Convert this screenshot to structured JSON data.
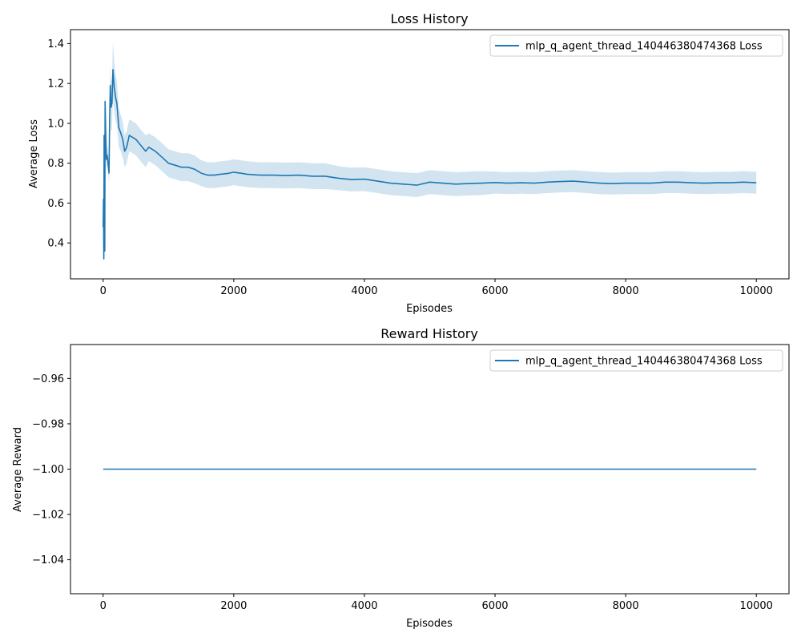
{
  "chart_data": [
    {
      "type": "line",
      "title": "Loss History",
      "xlabel": "Episodes",
      "ylabel": "Average Loss",
      "xlim": [
        -500,
        10500
      ],
      "ylim": [
        0.22,
        1.47
      ],
      "xticks": [
        0,
        2000,
        4000,
        6000,
        8000,
        10000
      ],
      "xtick_labels": [
        "0",
        "2000",
        "4000",
        "6000",
        "8000",
        "10000"
      ],
      "yticks": [
        0.4,
        0.6,
        0.8,
        1.0,
        1.2,
        1.4
      ],
      "ytick_labels": [
        "0.4",
        "0.6",
        "0.8",
        "1.0",
        "1.2",
        "1.4"
      ],
      "legend": {
        "position": "top-right",
        "entries": [
          "mlp_q_agent_thread_140446380474368 Loss"
        ]
      },
      "series": [
        {
          "name": "mlp_q_agent_thread_140446380474368 Loss",
          "color": "#1f77b4",
          "band_color": "#1f77b4",
          "x": [
            0,
            5,
            10,
            15,
            20,
            25,
            30,
            40,
            50,
            60,
            75,
            90,
            100,
            110,
            120,
            135,
            150,
            170,
            190,
            210,
            240,
            270,
            300,
            330,
            360,
            400,
            450,
            500,
            550,
            600,
            650,
            700,
            750,
            800,
            900,
            1000,
            1100,
            1200,
            1300,
            1400,
            1500,
            1600,
            1700,
            1800,
            1900,
            2000,
            2100,
            2200,
            2400,
            2600,
            2800,
            3000,
            3200,
            3400,
            3600,
            3800,
            4000,
            4200,
            4400,
            4600,
            4800,
            5000,
            5200,
            5400,
            5600,
            5800,
            6000,
            6200,
            6400,
            6600,
            6800,
            7000,
            7200,
            7400,
            7600,
            7800,
            8000,
            8200,
            8400,
            8600,
            8800,
            9000,
            9200,
            9400,
            9600,
            9800,
            10000
          ],
          "y": [
            0.48,
            0.62,
            0.32,
            0.94,
            0.88,
            0.36,
            1.11,
            0.95,
            0.82,
            0.84,
            0.8,
            0.75,
            1.02,
            1.19,
            1.08,
            1.1,
            1.27,
            1.18,
            1.13,
            1.1,
            0.98,
            0.95,
            0.92,
            0.86,
            0.88,
            0.94,
            0.93,
            0.92,
            0.9,
            0.88,
            0.86,
            0.88,
            0.87,
            0.86,
            0.83,
            0.8,
            0.79,
            0.78,
            0.78,
            0.77,
            0.75,
            0.74,
            0.74,
            0.745,
            0.748,
            0.755,
            0.75,
            0.745,
            0.74,
            0.74,
            0.738,
            0.74,
            0.735,
            0.735,
            0.725,
            0.718,
            0.72,
            0.71,
            0.7,
            0.695,
            0.69,
            0.705,
            0.7,
            0.695,
            0.698,
            0.7,
            0.703,
            0.7,
            0.702,
            0.7,
            0.705,
            0.708,
            0.71,
            0.705,
            0.7,
            0.698,
            0.7,
            0.7,
            0.7,
            0.705,
            0.705,
            0.702,
            0.7,
            0.702,
            0.702,
            0.705,
            0.702
          ],
          "spread": [
            0.0,
            0.0,
            0.0,
            0.02,
            0.02,
            0.02,
            0.05,
            0.05,
            0.05,
            0.05,
            0.05,
            0.05,
            0.09,
            0.11,
            0.12,
            0.13,
            0.14,
            0.13,
            0.12,
            0.11,
            0.1,
            0.09,
            0.09,
            0.08,
            0.08,
            0.08,
            0.08,
            0.08,
            0.08,
            0.08,
            0.08,
            0.07,
            0.07,
            0.07,
            0.07,
            0.07,
            0.07,
            0.07,
            0.07,
            0.07,
            0.065,
            0.065,
            0.065,
            0.065,
            0.065,
            0.065,
            0.065,
            0.065,
            0.065,
            0.065,
            0.065,
            0.065,
            0.065,
            0.065,
            0.06,
            0.06,
            0.06,
            0.06,
            0.06,
            0.06,
            0.06,
            0.06,
            0.06,
            0.06,
            0.06,
            0.06,
            0.055,
            0.055,
            0.055,
            0.055,
            0.055,
            0.055,
            0.055,
            0.055,
            0.055,
            0.055,
            0.055,
            0.055,
            0.055,
            0.055,
            0.055,
            0.055,
            0.055,
            0.055,
            0.055,
            0.055,
            0.055
          ]
        }
      ]
    },
    {
      "type": "line",
      "title": "Reward History",
      "xlabel": "Episodes",
      "ylabel": "Average Reward",
      "xlim": [
        -500,
        10500
      ],
      "ylim": [
        -1.055,
        -0.945
      ],
      "xticks": [
        0,
        2000,
        4000,
        6000,
        8000,
        10000
      ],
      "xtick_labels": [
        "0",
        "2000",
        "4000",
        "6000",
        "8000",
        "10000"
      ],
      "yticks": [
        -0.96,
        -0.98,
        -1.0,
        -1.02,
        -1.04
      ],
      "ytick_labels": [
        "−0.96",
        "−0.98",
        "−1.00",
        "−1.02",
        "−1.04"
      ],
      "legend": {
        "position": "top-right",
        "entries": [
          "mlp_q_agent_thread_140446380474368 Loss"
        ]
      },
      "series": [
        {
          "name": "mlp_q_agent_thread_140446380474368 Loss",
          "color": "#1f77b4",
          "x": [
            0,
            10000
          ],
          "y": [
            -1.0,
            -1.0
          ]
        }
      ]
    }
  ]
}
